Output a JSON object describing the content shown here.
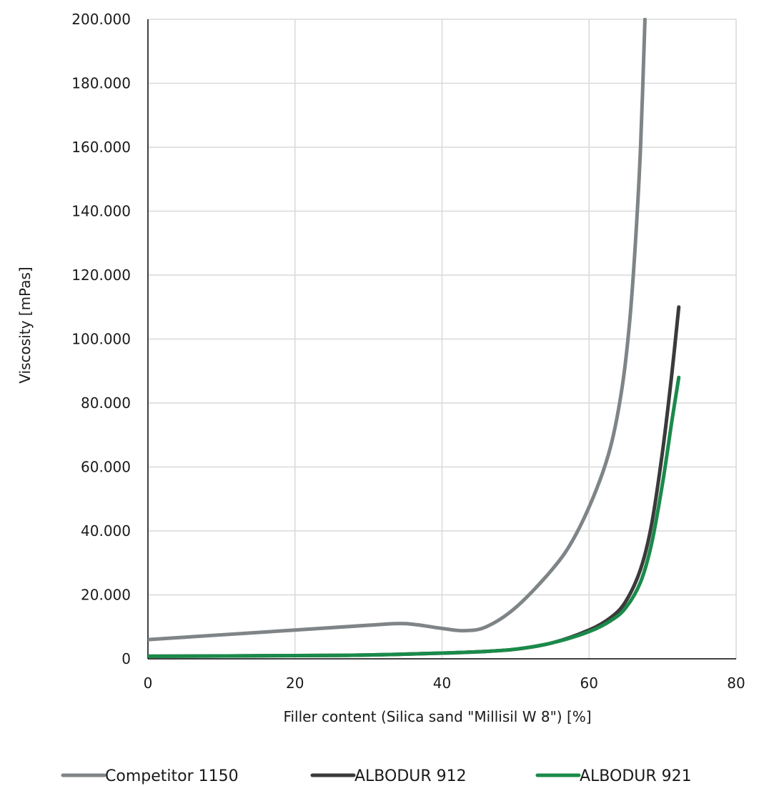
{
  "chart_data": {
    "type": "line",
    "title": "",
    "xlabel": "Filler content (Silica sand \"Millisil W 8\")  [%]",
    "ylabel": "Viscosity [mPas]",
    "xlim": [
      0,
      80
    ],
    "ylim": [
      0,
      200000
    ],
    "x_ticks": [
      0,
      20,
      40,
      60,
      80
    ],
    "x_tick_labels": [
      "0",
      "20",
      "40",
      "60",
      "80"
    ],
    "y_ticks": [
      0,
      20000,
      40000,
      60000,
      80000,
      100000,
      120000,
      140000,
      160000,
      180000,
      200000
    ],
    "y_tick_labels": [
      "0",
      "20.000",
      "40.000",
      "60.000",
      "80.000",
      "100.000",
      "120.000",
      "140.000",
      "160.000",
      "180.000",
      "200.000"
    ],
    "grid": true,
    "legend_position": "bottom",
    "series": [
      {
        "name": "Competitor 1150",
        "color": "#7f8487",
        "points": [
          [
            0,
            6000
          ],
          [
            10,
            7500
          ],
          [
            20,
            9000
          ],
          [
            30,
            10500
          ],
          [
            35,
            11000
          ],
          [
            40,
            9500
          ],
          [
            43,
            8800
          ],
          [
            46,
            10000
          ],
          [
            50,
            16000
          ],
          [
            55,
            28000
          ],
          [
            58,
            38000
          ],
          [
            61,
            53000
          ],
          [
            63,
            67000
          ],
          [
            64.5,
            85000
          ],
          [
            65.5,
            105000
          ],
          [
            66.3,
            130000
          ],
          [
            67,
            160000
          ],
          [
            67.6,
            200000
          ]
        ]
      },
      {
        "name": "ALBODUR 912",
        "color": "#3a3a3a",
        "points": [
          [
            0,
            800
          ],
          [
            20,
            1000
          ],
          [
            30,
            1200
          ],
          [
            40,
            1800
          ],
          [
            45,
            2200
          ],
          [
            50,
            3000
          ],
          [
            55,
            5000
          ],
          [
            60,
            9000
          ],
          [
            63,
            13000
          ],
          [
            65,
            18000
          ],
          [
            67,
            28000
          ],
          [
            68.5,
            42000
          ],
          [
            70,
            65000
          ],
          [
            71.2,
            88000
          ],
          [
            72.2,
            110000
          ]
        ]
      },
      {
        "name": "ALBODUR 921",
        "color": "#1a8a4a",
        "points": [
          [
            0,
            800
          ],
          [
            20,
            1000
          ],
          [
            30,
            1200
          ],
          [
            40,
            1800
          ],
          [
            45,
            2200
          ],
          [
            50,
            3000
          ],
          [
            55,
            5000
          ],
          [
            60,
            8500
          ],
          [
            63,
            12000
          ],
          [
            65,
            16000
          ],
          [
            67,
            24000
          ],
          [
            68.5,
            36000
          ],
          [
            70,
            55000
          ],
          [
            71.3,
            75000
          ],
          [
            72.2,
            88000
          ]
        ]
      }
    ]
  }
}
